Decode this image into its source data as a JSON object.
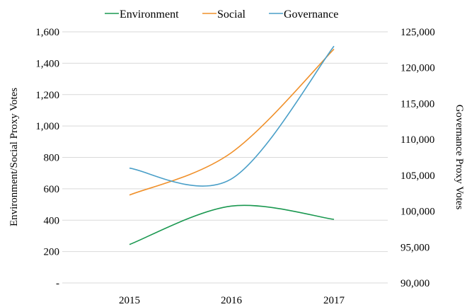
{
  "chart_data": {
    "type": "line",
    "categories": [
      "2015",
      "2016",
      "2017"
    ],
    "series": [
      {
        "name": "Environment",
        "axis": "left",
        "color": "#1a9850",
        "values": [
          245,
          490,
          405
        ]
      },
      {
        "name": "Social",
        "axis": "left",
        "color": "#f0902a",
        "values": [
          560,
          830,
          1490
        ]
      },
      {
        "name": "Governance",
        "axis": "right",
        "color": "#4a9fc8",
        "values": [
          106000,
          104500,
          123000
        ]
      }
    ],
    "ylabel_left": "Environment/Social Proxy Votes",
    "ylabel_right": "Governance Proxy Votes",
    "ylim_left": [
      0,
      1600
    ],
    "ylim_right": [
      90000,
      125000
    ],
    "yticks_left": [
      "-",
      "200",
      "400",
      "600",
      "800",
      "1,000",
      "1,200",
      "1,400",
      "1,600"
    ],
    "yticks_right": [
      "90,000",
      "95,000",
      "100,000",
      "105,000",
      "110,000",
      "115,000",
      "120,000",
      "125,000"
    ],
    "grid": true,
    "legend_position": "top"
  }
}
